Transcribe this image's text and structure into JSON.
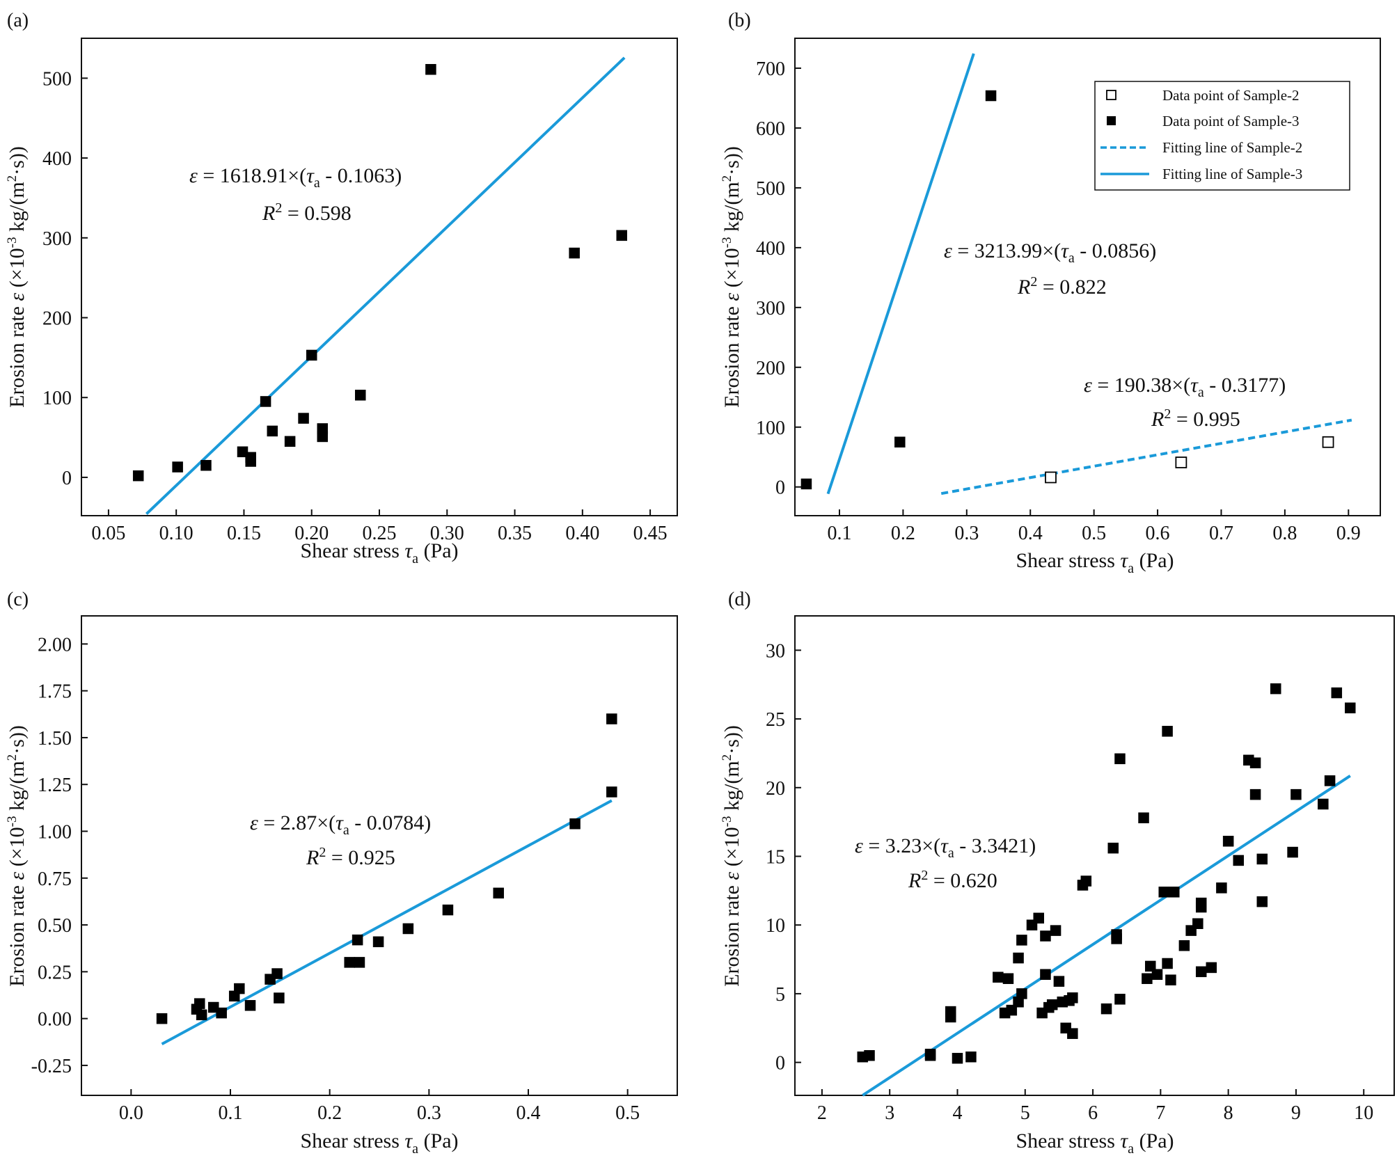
{
  "figure": {
    "colors": {
      "fit": "#1a9ad9",
      "marker": "#000000",
      "axis": "#111111"
    }
  },
  "chart_data": [
    {
      "id": "a",
      "type": "scatter",
      "panel_label": "(a)",
      "xlabel_main": "Shear stress ",
      "xlabel_var": "τ",
      "xlabel_sub": "a",
      "xlabel_unit": " (Pa)",
      "ylabel_main": "Erosion rate ",
      "ylabel_var": "ε",
      "ylabel_unit_a": " (×10",
      "ylabel_sup": "-3",
      "ylabel_unit_b": " kg/(m",
      "ylabel_sup2": "2",
      "ylabel_unit_c": "·s))",
      "xlim": [
        0.03,
        0.47
      ],
      "ylim": [
        -48,
        550
      ],
      "xticks": [
        0.05,
        0.1,
        0.15,
        0.2,
        0.25,
        0.3,
        0.35,
        0.4,
        0.45
      ],
      "xtick_labels": [
        "0.05",
        "0.10",
        "0.15",
        "0.20",
        "0.25",
        "0.30",
        "0.35",
        "0.40",
        "0.45"
      ],
      "yticks": [
        0,
        100,
        200,
        300,
        400,
        500
      ],
      "ytick_labels": [
        "0",
        "100",
        "200",
        "300",
        "400",
        "500"
      ],
      "series": [
        {
          "name": "Data point of Sample-3",
          "marker": "filled-square",
          "points": [
            [
              0.072,
              2
            ],
            [
              0.101,
              13
            ],
            [
              0.122,
              15
            ],
            [
              0.149,
              32
            ],
            [
              0.155,
              25
            ],
            [
              0.155,
              20
            ],
            [
              0.166,
              95
            ],
            [
              0.171,
              58
            ],
            [
              0.184,
              45
            ],
            [
              0.194,
              74
            ],
            [
              0.2,
              153
            ],
            [
              0.208,
              61
            ],
            [
              0.208,
              51
            ],
            [
              0.236,
              103
            ],
            [
              0.288,
              511
            ],
            [
              0.394,
              281
            ],
            [
              0.429,
              303
            ]
          ]
        }
      ],
      "fits": [
        {
          "name": "Fitting line of Sample-3",
          "style": "solid",
          "slope": 1618.91,
          "x0": 0.1063,
          "x_range": [
            0.078,
            0.431
          ]
        }
      ],
      "annotations": [
        {
          "eq_lhs": "ε",
          "eq_mid": " = 1618.91×(",
          "eq_var": "τ",
          "eq_sub": "a",
          "eq_tail": " - 0.1063)",
          "r2_var": "R",
          "r2_sup": "2",
          "r2_tail": " = 0.598"
        }
      ]
    },
    {
      "id": "b",
      "type": "scatter",
      "panel_label": "(b)",
      "xlabel_main": "Shear stress ",
      "xlabel_var": "τ",
      "xlabel_sub": "a",
      "xlabel_unit": " (Pa)",
      "ylabel_main": "Erosion rate ",
      "ylabel_var": "ε",
      "ylabel_unit_a": " (×10",
      "ylabel_sup": "-3",
      "ylabel_unit_b": " kg/(m",
      "ylabel_sup2": "2",
      "ylabel_unit_c": "·s))",
      "xlim": [
        0.03,
        0.95
      ],
      "ylim": [
        -48,
        750
      ],
      "xticks": [
        0.1,
        0.2,
        0.3,
        0.4,
        0.5,
        0.6,
        0.7,
        0.8,
        0.9
      ],
      "xtick_labels": [
        "0.1",
        "0.2",
        "0.3",
        "0.4",
        "0.5",
        "0.6",
        "0.7",
        "0.8",
        "0.9"
      ],
      "yticks": [
        0,
        100,
        200,
        300,
        400,
        500,
        600,
        700
      ],
      "ytick_labels": [
        "0",
        "100",
        "200",
        "300",
        "400",
        "500",
        "600",
        "700"
      ],
      "legend": {
        "position": "top-right",
        "entries": [
          {
            "label": "Data point of Sample-2",
            "kind": "open-square"
          },
          {
            "label": "Data point of Sample-3",
            "kind": "filled-square"
          },
          {
            "label": "Fitting line of Sample-2",
            "kind": "dashed-line"
          },
          {
            "label": "Fitting line of Sample-3",
            "kind": "solid-line"
          }
        ]
      },
      "series": [
        {
          "name": "Data point of Sample-2",
          "marker": "open-square",
          "points": [
            [
              0.432,
              16
            ],
            [
              0.637,
              41
            ],
            [
              0.868,
              75
            ]
          ]
        },
        {
          "name": "Data point of Sample-3",
          "marker": "filled-square",
          "points": [
            [
              0.048,
              5
            ],
            [
              0.195,
              75
            ],
            [
              0.338,
              654
            ]
          ]
        }
      ],
      "fits": [
        {
          "name": "Fitting line of Sample-2",
          "style": "dashed",
          "slope": 190.38,
          "x0": 0.3177,
          "x_range": [
            0.26,
            0.905
          ]
        },
        {
          "name": "Fitting line of Sample-3",
          "style": "solid",
          "slope": 3213.99,
          "x0": 0.0856,
          "x_range": [
            0.082,
            0.311
          ]
        }
      ],
      "annotations": [
        {
          "eq_lhs": "ε",
          "eq_mid": " = 3213.99×(",
          "eq_var": "τ",
          "eq_sub": "a",
          "eq_tail": " - 0.0856)",
          "r2_var": "R",
          "r2_sup": "2",
          "r2_tail": " = 0.822"
        },
        {
          "eq_lhs": "ε",
          "eq_mid": " = 190.38×(",
          "eq_var": "τ",
          "eq_sub": "a",
          "eq_tail": " - 0.3177)",
          "r2_var": "R",
          "r2_sup": "2",
          "r2_tail": " = 0.995"
        }
      ]
    },
    {
      "id": "c",
      "type": "scatter",
      "panel_label": "(c)",
      "xlabel_main": "Shear stress ",
      "xlabel_var": "τ",
      "xlabel_sub": "a",
      "xlabel_unit": " (Pa)",
      "ylabel_main": "Erosion rate ",
      "ylabel_var": "ε",
      "ylabel_unit_a": " (×10",
      "ylabel_sup": "-3",
      "ylabel_unit_b": " kg/(m",
      "ylabel_sup2": "2",
      "ylabel_unit_c": "·s))",
      "xlim": [
        -0.05,
        0.55
      ],
      "ylim": [
        -0.41,
        2.15
      ],
      "xticks": [
        0.0,
        0.1,
        0.2,
        0.3,
        0.4,
        0.5
      ],
      "xtick_labels": [
        "0.0",
        "0.1",
        "0.2",
        "0.3",
        "0.4",
        "0.5"
      ],
      "yticks": [
        -0.25,
        0.0,
        0.25,
        0.5,
        0.75,
        1.0,
        1.25,
        1.5,
        1.75,
        2.0
      ],
      "ytick_labels": [
        "-0.25",
        "0.00",
        "0.25",
        "0.50",
        "0.75",
        "1.00",
        "1.25",
        "1.50",
        "1.75",
        "2.00"
      ],
      "series": [
        {
          "name": "Data point of Sample-3",
          "marker": "filled-square",
          "points": [
            [
              0.031,
              0.0
            ],
            [
              0.066,
              0.05
            ],
            [
              0.069,
              0.08
            ],
            [
              0.071,
              0.02
            ],
            [
              0.083,
              0.06
            ],
            [
              0.091,
              0.03
            ],
            [
              0.104,
              0.12
            ],
            [
              0.109,
              0.16
            ],
            [
              0.12,
              0.07
            ],
            [
              0.14,
              0.21
            ],
            [
              0.147,
              0.24
            ],
            [
              0.149,
              0.11
            ],
            [
              0.22,
              0.3
            ],
            [
              0.228,
              0.42
            ],
            [
              0.23,
              0.3
            ],
            [
              0.249,
              0.41
            ],
            [
              0.279,
              0.48
            ],
            [
              0.319,
              0.58
            ],
            [
              0.37,
              0.67
            ],
            [
              0.447,
              1.04
            ],
            [
              0.484,
              1.6
            ],
            [
              0.484,
              1.21
            ]
          ]
        }
      ],
      "fits": [
        {
          "name": "Fitting line of Sample-3",
          "style": "solid",
          "slope": 2.87,
          "x0": 0.0784,
          "x_range": [
            0.031,
            0.484
          ]
        }
      ],
      "annotations": [
        {
          "eq_lhs": "ε",
          "eq_mid": " = 2.87×(",
          "eq_var": "τ",
          "eq_sub": "a",
          "eq_tail": " - 0.0784)",
          "r2_var": "R",
          "r2_sup": "2",
          "r2_tail": " = 0.925"
        }
      ]
    },
    {
      "id": "d",
      "type": "scatter",
      "panel_label": "(d)",
      "xlabel_main": "Shear stress ",
      "xlabel_var": "τ",
      "xlabel_sub": "a",
      "xlabel_unit": " (Pa)",
      "ylabel_main": "Erosion rate ",
      "ylabel_var": "ε",
      "ylabel_unit_a": " (×10",
      "ylabel_sup": "-3",
      "ylabel_unit_b": " kg/(m",
      "ylabel_sup2": "2",
      "ylabel_unit_c": "·s))",
      "xlim": [
        1.6,
        10.45
      ],
      "ylim": [
        -2.4,
        32.5
      ],
      "xticks": [
        2,
        3,
        4,
        5,
        6,
        7,
        8,
        9,
        10
      ],
      "xtick_labels": [
        "2",
        "3",
        "4",
        "5",
        "6",
        "7",
        "8",
        "9",
        "10"
      ],
      "yticks": [
        0,
        5,
        10,
        15,
        20,
        25,
        30
      ],
      "ytick_labels": [
        "0",
        "5",
        "10",
        "15",
        "20",
        "25",
        "30"
      ],
      "series": [
        {
          "name": "Data point of Sample-3",
          "marker": "filled-square",
          "points": [
            [
              2.6,
              0.4
            ],
            [
              2.7,
              0.5
            ],
            [
              3.6,
              0.6
            ],
            [
              3.6,
              0.5
            ],
            [
              3.9,
              3.7
            ],
            [
              3.9,
              3.3
            ],
            [
              4.0,
              0.3
            ],
            [
              4.2,
              0.4
            ],
            [
              4.6,
              6.2
            ],
            [
              4.7,
              3.6
            ],
            [
              4.75,
              6.1
            ],
            [
              4.8,
              3.8
            ],
            [
              4.9,
              4.4
            ],
            [
              4.9,
              7.6
            ],
            [
              4.95,
              8.9
            ],
            [
              4.95,
              5.0
            ],
            [
              5.1,
              10.0
            ],
            [
              5.2,
              10.5
            ],
            [
              5.25,
              3.6
            ],
            [
              5.3,
              9.2
            ],
            [
              5.3,
              6.4
            ],
            [
              5.35,
              4.0
            ],
            [
              5.4,
              4.2
            ],
            [
              5.45,
              9.6
            ],
            [
              5.5,
              5.9
            ],
            [
              5.55,
              4.4
            ],
            [
              5.6,
              2.5
            ],
            [
              5.65,
              4.5
            ],
            [
              5.7,
              4.7
            ],
            [
              5.7,
              2.1
            ],
            [
              5.85,
              12.9
            ],
            [
              5.9,
              13.2
            ],
            [
              6.2,
              3.9
            ],
            [
              6.3,
              15.6
            ],
            [
              6.35,
              9.3
            ],
            [
              6.35,
              9.0
            ],
            [
              6.4,
              4.6
            ],
            [
              6.4,
              22.1
            ],
            [
              6.75,
              17.8
            ],
            [
              6.8,
              6.1
            ],
            [
              6.85,
              7.0
            ],
            [
              6.95,
              6.4
            ],
            [
              7.05,
              12.4
            ],
            [
              7.1,
              24.1
            ],
            [
              7.1,
              7.2
            ],
            [
              7.15,
              6.0
            ],
            [
              7.2,
              12.4
            ],
            [
              7.35,
              8.5
            ],
            [
              7.45,
              9.6
            ],
            [
              7.55,
              10.1
            ],
            [
              7.6,
              11.6
            ],
            [
              7.6,
              11.3
            ],
            [
              7.6,
              6.6
            ],
            [
              7.75,
              6.9
            ],
            [
              7.9,
              12.7
            ],
            [
              8.0,
              16.1
            ],
            [
              8.15,
              14.7
            ],
            [
              8.3,
              22.0
            ],
            [
              8.4,
              21.8
            ],
            [
              8.4,
              19.5
            ],
            [
              8.5,
              14.8
            ],
            [
              8.5,
              11.7
            ],
            [
              8.7,
              27.2
            ],
            [
              8.95,
              15.3
            ],
            [
              9.0,
              19.5
            ],
            [
              9.4,
              18.8
            ],
            [
              9.5,
              20.5
            ],
            [
              9.6,
              26.9
            ],
            [
              9.8,
              25.8
            ]
          ]
        }
      ],
      "fits": [
        {
          "name": "Fitting line of Sample-3",
          "style": "solid",
          "slope": 3.23,
          "x0": 3.3421,
          "x_range": [
            2.6,
            9.8
          ]
        }
      ],
      "annotations": [
        {
          "eq_lhs": "ε",
          "eq_mid": " = 3.23×(",
          "eq_var": "τ",
          "eq_sub": "a",
          "eq_tail": " - 3.3421)",
          "r2_var": "R",
          "r2_sup": "2",
          "r2_tail": " = 0.620"
        }
      ]
    }
  ]
}
